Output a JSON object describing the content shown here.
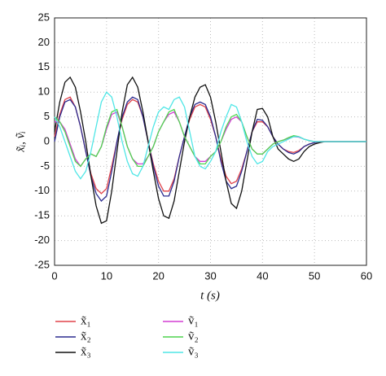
{
  "chart_data": {
    "type": "line",
    "xlabel": "t (s)",
    "ylabel": "x̃ᵢ, ṽᵢ",
    "x": [
      0,
      1,
      2,
      3,
      4,
      5,
      6,
      7,
      8,
      9,
      10,
      11,
      12,
      13,
      14,
      15,
      16,
      17,
      18,
      19,
      20,
      21,
      22,
      23,
      24,
      25,
      26,
      27,
      28,
      29,
      30,
      31,
      32,
      33,
      34,
      35,
      36,
      37,
      38,
      39,
      40,
      41,
      42,
      43,
      44,
      45,
      46,
      47,
      48,
      49,
      50,
      51,
      52,
      53,
      54,
      55,
      56,
      57,
      58,
      59,
      60
    ],
    "xlim": [
      0,
      60
    ],
    "xticks": [
      0,
      10,
      20,
      30,
      40,
      50,
      60
    ],
    "ylim": [
      -25,
      25
    ],
    "yticks": [
      -25,
      -20,
      -15,
      -10,
      -5,
      0,
      5,
      10,
      15,
      20,
      25
    ],
    "grid": true,
    "series": [
      {
        "name": "x̃₁",
        "color": "#e0434a",
        "values": [
          1,
          5.5,
          8.5,
          9,
          7,
          3,
          -2,
          -6.5,
          -9.5,
          -10.5,
          -9.5,
          -5,
          0,
          4.5,
          7.5,
          8.5,
          8,
          5,
          0,
          -4.5,
          -8,
          -10,
          -10,
          -7.5,
          -3,
          1,
          4.5,
          7,
          7.5,
          7,
          4.5,
          1,
          -3.5,
          -7,
          -8.5,
          -8,
          -5.5,
          -2,
          2,
          4,
          4,
          3,
          1,
          -0.5,
          -1.5,
          -2,
          -2.2,
          -1.8,
          -1,
          -0.5,
          -0.2,
          0,
          0,
          0,
          0,
          0,
          0,
          0,
          0,
          0,
          0
        ]
      },
      {
        "name": "x̃₂",
        "color": "#2b2b8f",
        "values": [
          0,
          5,
          8,
          8.5,
          7,
          3,
          -2,
          -7,
          -10.5,
          -12,
          -11,
          -6,
          0,
          5,
          8,
          9,
          8.5,
          5,
          0,
          -5,
          -9,
          -11,
          -11,
          -8,
          -3,
          1,
          5,
          7.5,
          8,
          7.5,
          5,
          1,
          -4,
          -8,
          -9.5,
          -9,
          -6,
          -2,
          2,
          4.5,
          4.3,
          3,
          1,
          -0.5,
          -1.5,
          -2.2,
          -2.5,
          -2,
          -1,
          -0.5,
          -0.2,
          0,
          0,
          0,
          0,
          0,
          0,
          0,
          0,
          0,
          0
        ]
      },
      {
        "name": "x̃₃",
        "color": "#111111",
        "values": [
          2,
          8,
          12,
          13,
          11,
          6,
          0,
          -7,
          -13,
          -16.5,
          -16,
          -10,
          -2,
          6,
          11.5,
          13,
          11,
          6,
          0,
          -6,
          -11.5,
          -15,
          -15.5,
          -12,
          -6,
          0,
          5,
          9,
          11,
          11.5,
          9,
          4,
          -2,
          -8,
          -12.5,
          -13.5,
          -10,
          -4,
          2,
          6.5,
          6.7,
          5,
          1,
          -1.5,
          -2.5,
          -3.5,
          -4,
          -3.5,
          -2,
          -1,
          -0.5,
          -0.2,
          0,
          0,
          0,
          0,
          0,
          0,
          0,
          0,
          0
        ]
      },
      {
        "name": "ṽ₁",
        "color": "#d43fd4",
        "values": [
          4,
          4,
          2.5,
          -0.5,
          -3.5,
          -5,
          -3.5,
          -2.5,
          -3,
          -1,
          2.5,
          5.5,
          6,
          3,
          -1,
          -3.5,
          -4.5,
          -4.5,
          -3,
          -1,
          2,
          4,
          5.5,
          6,
          4,
          1,
          -1,
          -3,
          -4,
          -4,
          -3,
          -2,
          0,
          2.5,
          4.5,
          5,
          4,
          1,
          -1.5,
          -2.5,
          -2.5,
          -1.5,
          -0.5,
          0,
          0.3,
          0.7,
          1,
          0.9,
          0.5,
          0.2,
          0,
          0,
          0,
          0,
          0,
          0,
          0,
          0,
          0,
          0,
          0
        ]
      },
      {
        "name": "ṽ₂",
        "color": "#4fd44f",
        "values": [
          5,
          4,
          2,
          -1,
          -4,
          -5,
          -3.5,
          -2.5,
          -3,
          -1,
          3,
          6,
          6.5,
          3,
          -1,
          -3.5,
          -5,
          -5,
          -3,
          -1,
          2,
          4,
          6,
          6.5,
          4,
          1,
          -1,
          -3,
          -4.5,
          -4.5,
          -3,
          -2,
          0,
          3,
          5,
          5.5,
          4,
          1,
          -1.5,
          -2.5,
          -2.5,
          -1.5,
          -0.5,
          0,
          0.3,
          0.8,
          1.2,
          1,
          0.5,
          0.2,
          0,
          0,
          0,
          0,
          0,
          0,
          0,
          0,
          0,
          0,
          0
        ]
      },
      {
        "name": "ṽ₃",
        "color": "#4fe6e6",
        "values": [
          5,
          3,
          0,
          -3,
          -6,
          -7.5,
          -6,
          -2,
          3,
          8,
          10,
          9,
          5,
          0,
          -4,
          -6.5,
          -7,
          -5,
          -1,
          3,
          6,
          7,
          6.5,
          8.5,
          9,
          7,
          2,
          -3,
          -5,
          -5.5,
          -4,
          -2,
          2,
          5,
          7.5,
          7,
          4,
          0,
          -3,
          -4.5,
          -4,
          -2,
          -1,
          -0.5,
          0,
          0.5,
          1,
          1,
          0.5,
          0.2,
          0,
          0,
          0,
          0,
          0,
          0,
          0,
          0,
          0,
          0,
          0
        ]
      }
    ]
  }
}
